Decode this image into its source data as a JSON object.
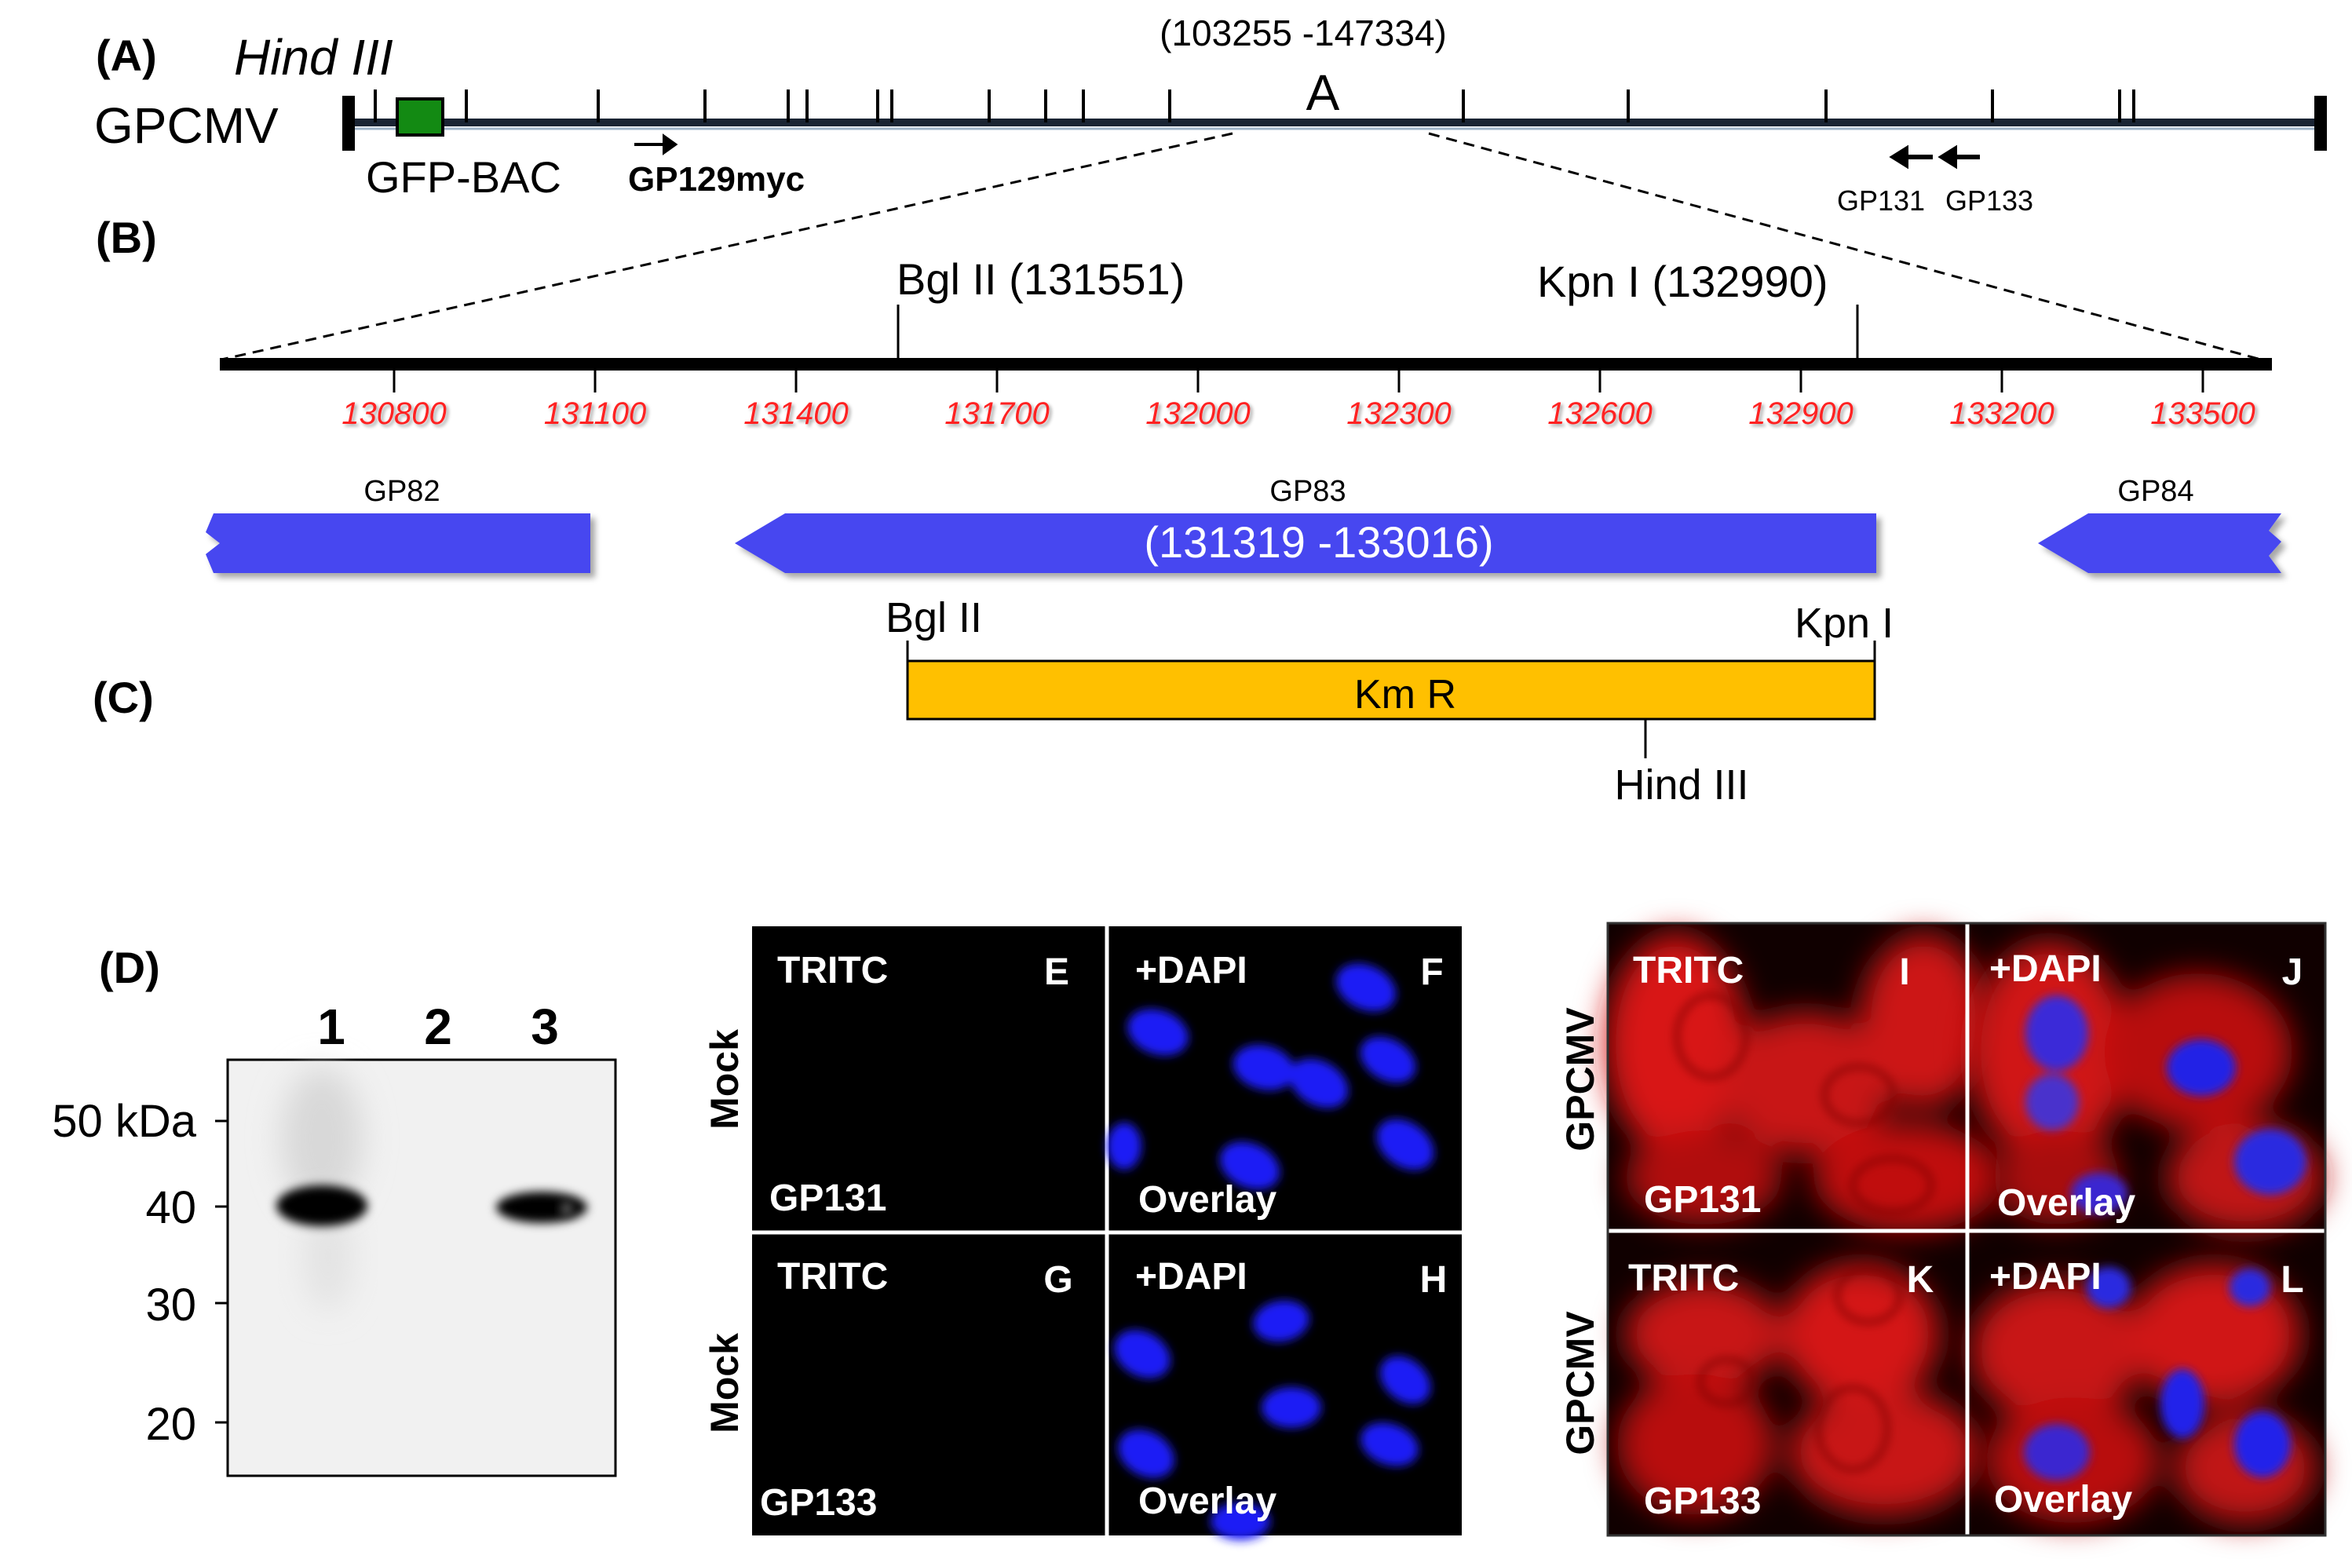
{
  "panelA": {
    "label": "(A)",
    "enzyme_label": "Hind III",
    "genome_name": "GPCMV",
    "range_label": "(103255 -147334)",
    "fragment_letter": "A",
    "gfp_label": "GFP-BAC",
    "gp129_label": "GP129myc",
    "gp131_label": "GP131",
    "gp133_label": "GP133"
  },
  "panelB": {
    "label": "(B)",
    "bglII_site": "Bgl II (131551)",
    "kpnI_site": "Kpn I (132990)",
    "scale_ticks": [
      "130800",
      "131100",
      "131400",
      "131700",
      "132000",
      "132300",
      "132600",
      "132900",
      "133200",
      "133500"
    ],
    "genes": {
      "gp82": "GP82",
      "gp83": "GP83",
      "gp83_range": "(131319 -133016)",
      "gp84": "GP84"
    },
    "bglII_short": "Bgl II",
    "kpnI_short": "Kpn I"
  },
  "panelC": {
    "label": "(C)",
    "cassette": "Km R",
    "hind_site": "Hind III"
  },
  "panelD": {
    "label": "(D)",
    "lanes": [
      "1",
      "2",
      "3"
    ],
    "markers": [
      "50 kDa",
      "40",
      "30",
      "20"
    ]
  },
  "micrographs": {
    "E": {
      "letter": "E",
      "channel": "TRITC",
      "target": "GP131"
    },
    "F": {
      "letter": "F",
      "channel": "+DAPI",
      "target": "Overlay"
    },
    "G": {
      "letter": "G",
      "channel": "TRITC",
      "target": "GP133"
    },
    "H": {
      "letter": "H",
      "channel": "+DAPI",
      "target": "Overlay"
    },
    "I": {
      "letter": "I",
      "channel": "TRITC",
      "target": "GP131"
    },
    "J": {
      "letter": "J",
      "channel": "+DAPI",
      "target": "Overlay"
    },
    "K": {
      "letter": "K",
      "channel": "TRITC",
      "target": "GP133"
    },
    "L": {
      "letter": "L",
      "channel": "+DAPI",
      "target": "Overlay"
    },
    "row_label_mock": "Mock",
    "row_label_gpcmv": "GPCMV"
  },
  "colors": {
    "gene_arrow": "#4646f0",
    "cassette": "#ffc000",
    "gfp_box": "#138a13",
    "scale_text": "#ff2020",
    "tritc_red": "#e01010",
    "dapi_blue": "#1e1ef5"
  }
}
